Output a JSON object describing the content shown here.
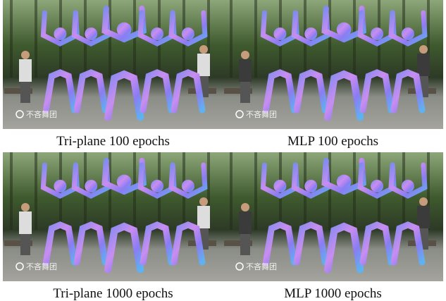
{
  "figure": {
    "panels": [
      {
        "caption": "Tri-plane 100 epochs"
      },
      {
        "caption": "MLP 100 epochs"
      },
      {
        "caption": "Tri-plane 1000 epochs"
      },
      {
        "caption": "MLP 1000 epochs"
      }
    ],
    "watermark": "不吝舞团"
  }
}
